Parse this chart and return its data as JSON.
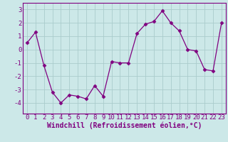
{
  "x": [
    0,
    1,
    2,
    3,
    4,
    5,
    6,
    7,
    8,
    9,
    10,
    11,
    12,
    13,
    14,
    15,
    16,
    17,
    18,
    19,
    20,
    21,
    22,
    23
  ],
  "y": [
    0.5,
    1.3,
    -1.2,
    -3.2,
    -4.0,
    -3.4,
    -3.5,
    -3.7,
    -2.7,
    -3.5,
    -0.9,
    -1.0,
    -1.0,
    1.2,
    1.9,
    2.1,
    2.9,
    2.0,
    1.4,
    0.0,
    -0.1,
    -1.5,
    -1.6,
    2.0
  ],
  "line_color": "#800080",
  "marker": "D",
  "marker_size": 2.5,
  "bg_color": "#cce8e8",
  "grid_color": "#aacccc",
  "xlabel": "Windchill (Refroidissement éolien,°C)",
  "xlabel_color": "#800080",
  "ylim": [
    -4.8,
    3.5
  ],
  "yticks": [
    -4,
    -3,
    -2,
    -1,
    0,
    1,
    2,
    3
  ],
  "xticks": [
    0,
    1,
    2,
    3,
    4,
    5,
    6,
    7,
    8,
    9,
    10,
    11,
    12,
    13,
    14,
    15,
    16,
    17,
    18,
    19,
    20,
    21,
    22,
    23
  ],
  "tick_fontsize": 6.5,
  "xlabel_fontsize": 7.0
}
